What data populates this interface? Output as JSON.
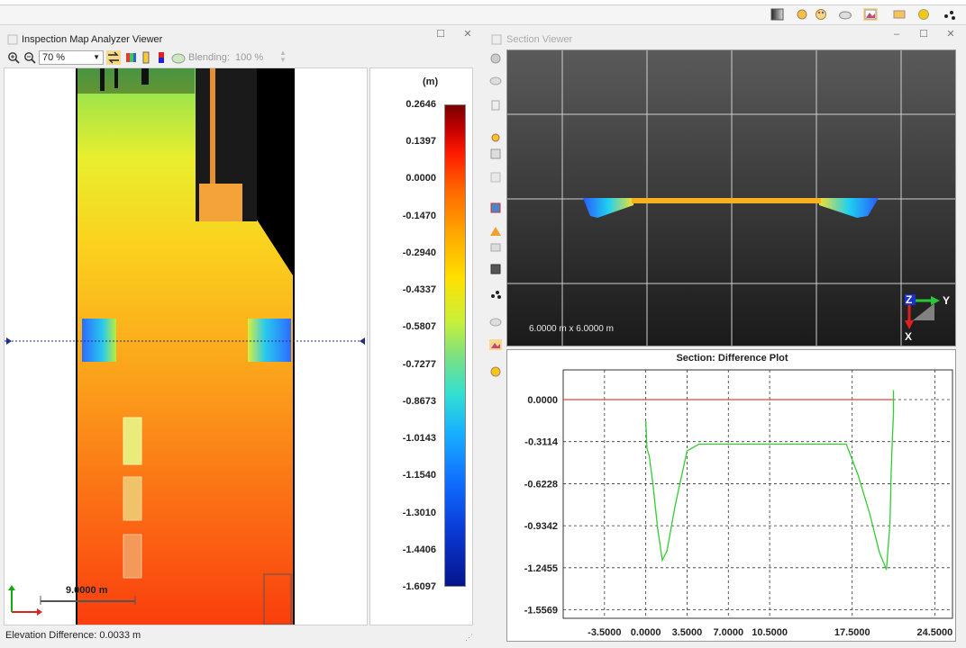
{
  "toolbar": {
    "icons": [
      "gradient-icon",
      "camera-icon",
      "palette-icon",
      "cloud-icon",
      "map-icon",
      "rectangle-icon",
      "sphere-icon",
      "dots-icon"
    ]
  },
  "left_pane": {
    "title": "Inspection Map Analyzer Viewer",
    "zoom_value": "70 %",
    "blending_label": "Blending:",
    "blending_value": "100 %",
    "scale_label": "9.0000 m",
    "legend_unit": "(m)",
    "legend_ticks": [
      "0.2646",
      "0.1397",
      "0.0000",
      "-0.1470",
      "-0.2940",
      "-0.4337",
      "-0.5807",
      "-0.7277",
      "-0.8673",
      "-1.0143",
      "-1.1540",
      "-1.3010",
      "-1.4406",
      "-1.6097"
    ],
    "status": "Elevation Difference: 0.0033 m"
  },
  "right_pane": {
    "title": "Section Viewer",
    "viewport_size": "6.0000 m x 6.0000 m",
    "axis_z": "Z",
    "axis_y": "Y",
    "axis_x": "X",
    "plot_title": "Section: Difference Plot"
  },
  "chart_data": {
    "type": "line",
    "title": "Section: Difference Plot",
    "xlabel": "",
    "ylabel": "",
    "x_ticks": [
      "-3.5000",
      "0.0000",
      "3.5000",
      "7.0000",
      "10.5000",
      "17.5000",
      "24.5000"
    ],
    "y_ticks": [
      "0.0000",
      "-0.3114",
      "-0.6228",
      "-0.9342",
      "-1.2455",
      "-1.5569"
    ],
    "xlim": [
      -7.0,
      26.0
    ],
    "ylim": [
      -1.62,
      0.22
    ],
    "grid": true,
    "series": [
      {
        "color": "#d84a3a",
        "x": [
          -7.0,
          21.0
        ],
        "y": [
          0.0,
          0.0
        ]
      },
      {
        "color": "#33cc33",
        "x": [
          0.0,
          0.1,
          0.3,
          0.6,
          1.0,
          1.4,
          1.8,
          2.5,
          3.5,
          4.5,
          7.0,
          10.5,
          14.0,
          17.0,
          18.0,
          19.0,
          19.8,
          20.4,
          20.7,
          20.8,
          20.9,
          21.0,
          21.0
        ],
        "y": [
          -0.16,
          -0.36,
          -0.42,
          -0.62,
          -0.95,
          -1.19,
          -1.12,
          -0.78,
          -0.38,
          -0.33,
          -0.33,
          -0.33,
          -0.33,
          -0.33,
          -0.56,
          -0.85,
          -1.13,
          -1.26,
          -0.92,
          -0.55,
          -0.3,
          -0.1,
          0.07
        ]
      }
    ]
  }
}
